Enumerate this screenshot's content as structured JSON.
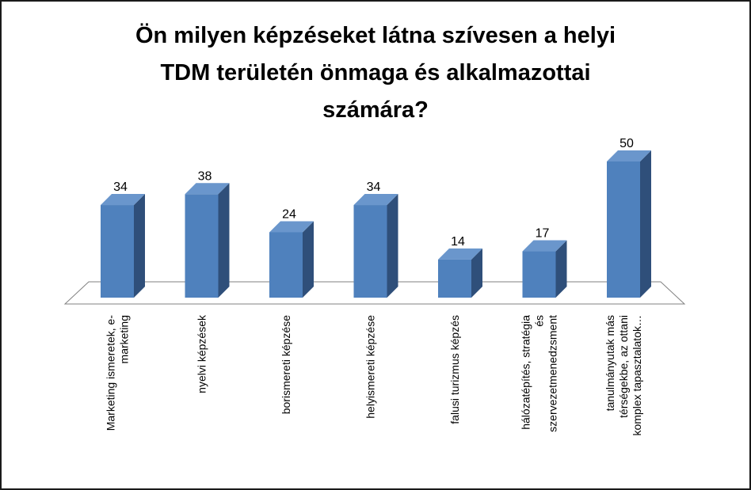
{
  "chart_data": {
    "type": "bar",
    "title_lines": [
      "Ön milyen képzéseket látna szívesen a helyi",
      "TDM területén önmaga és alkalmazottai",
      "számára?"
    ],
    "categories": [
      [
        "Marketing ismeretek, e-",
        "marketing"
      ],
      [
        "nyelvi képzések"
      ],
      [
        "borismereti képzése"
      ],
      [
        "helyismereti képzése"
      ],
      [
        "falusi turizmus képzés"
      ],
      [
        "hálózatépítés, stratégia",
        "és",
        "szervezetmenedzsment"
      ],
      [
        "tanulmányutak más",
        "térségekbe, az ottani",
        "komplex tapasztalatok…"
      ]
    ],
    "values": [
      34,
      38,
      24,
      34,
      14,
      17,
      50
    ],
    "data_labels": [
      "34",
      "38",
      "24",
      "34",
      "14",
      "17",
      "50"
    ],
    "ylim": [
      0,
      50
    ],
    "grid": false,
    "legend": "none",
    "style": "3d-column",
    "colors": {
      "bar_front": "#4f81bd",
      "bar_side": "#2f4f7a",
      "bar_top": "#6a96cc",
      "floor": "#ffffff",
      "floor_stroke": "#808080"
    }
  }
}
